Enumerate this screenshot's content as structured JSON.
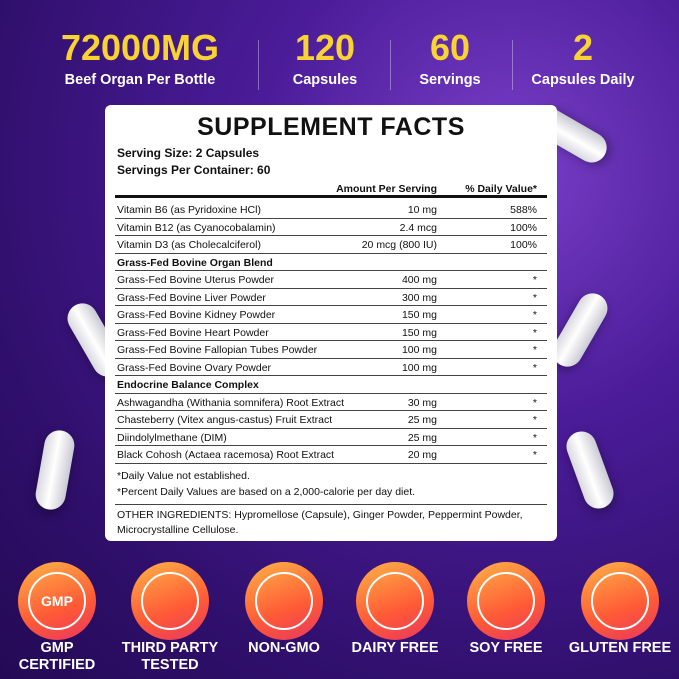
{
  "stats": [
    {
      "value": "72000MG",
      "label": "Beef Organ Per Bottle"
    },
    {
      "value": "120",
      "label": "Capsules"
    },
    {
      "value": "60",
      "label": "Servings"
    },
    {
      "value": "2",
      "label": "Capsules Daily"
    }
  ],
  "facts": {
    "title": "SUPPLEMENT FACTS",
    "serving_size": "Serving Size: 2 Capsules",
    "servings_per_container": "Servings Per Container: 60",
    "amount_header": "Amount Per Serving",
    "dv_header": "% Daily Value*",
    "groups": [
      {
        "rows": [
          {
            "name": "Vitamin B6 (as Pyridoxine HCl)",
            "amount": "10 mg",
            "dv": "588%"
          },
          {
            "name": "Vitamin B12 (as Cyanocobalamin)",
            "amount": "2.4 mcg",
            "dv": "100%"
          },
          {
            "name": "Vitamin D3 (as Cholecalciferol)",
            "amount": "20 mcg (800 IU)",
            "dv": "100%"
          }
        ]
      },
      {
        "title": "Grass-Fed Bovine Organ Blend",
        "rows": [
          {
            "name": "Grass-Fed Bovine Uterus Powder",
            "amount": "400 mg",
            "dv": "*"
          },
          {
            "name": "Grass-Fed Bovine Liver Powder",
            "amount": "300 mg",
            "dv": "*"
          },
          {
            "name": "Grass-Fed Bovine Kidney Powder",
            "amount": "150 mg",
            "dv": "*"
          },
          {
            "name": "Grass-Fed Bovine Heart Powder",
            "amount": "150 mg",
            "dv": "*"
          },
          {
            "name": "Grass-Fed Bovine Fallopian Tubes Powder",
            "amount": "100 mg",
            "dv": "*"
          },
          {
            "name": "Grass-Fed Bovine Ovary Powder",
            "amount": "100 mg",
            "dv": "*"
          }
        ]
      },
      {
        "title": "Endocrine Balance Complex",
        "rows": [
          {
            "name": "Ashwagandha (Withania somnifera) Root Extract",
            "amount": "30 mg",
            "dv": "*"
          },
          {
            "name": "Chasteberry (Vitex angus-castus) Fruit Extract",
            "amount": "25 mg",
            "dv": "*"
          },
          {
            "name": "Diindolylmethane (DIM)",
            "amount": "25 mg",
            "dv": "*"
          },
          {
            "name": "Black Cohosh (Actaea racemosa) Root Extract",
            "amount": "20 mg",
            "dv": "*"
          }
        ]
      }
    ],
    "notes": [
      "*Daily Value not established.",
      "*Percent Daily Values are based on a 2,000-calorie per day diet."
    ],
    "other_ingredients": [
      "OTHER INGREDIENTS: Hypromellose (Capsule), Ginger Powder, Peppermint Powder,",
      "Microcrystalline Cellulose."
    ]
  },
  "badges": [
    {
      "icon_text": "GMP",
      "label": [
        "GMP",
        "CERTIFIED"
      ]
    },
    {
      "label": [
        "THIRD PARTY",
        "TESTED"
      ]
    },
    {
      "label": [
        "NON-GMO"
      ]
    },
    {
      "label": [
        "DAIRY FREE"
      ]
    },
    {
      "label": [
        "SOY FREE"
      ]
    },
    {
      "label": [
        "GLUTEN FREE"
      ]
    }
  ]
}
